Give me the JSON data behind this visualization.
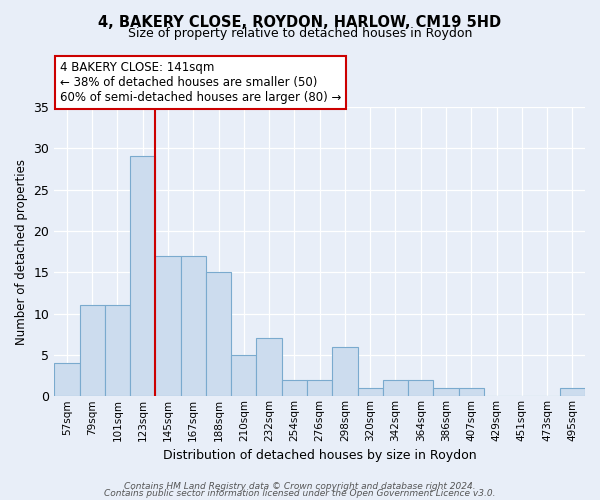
{
  "title": "4, BAKERY CLOSE, ROYDON, HARLOW, CM19 5HD",
  "subtitle": "Size of property relative to detached houses in Roydon",
  "xlabel": "Distribution of detached houses by size in Roydon",
  "ylabel": "Number of detached properties",
  "footer_line1": "Contains HM Land Registry data © Crown copyright and database right 2024.",
  "footer_line2": "Contains public sector information licensed under the Open Government Licence v3.0.",
  "bin_labels": [
    "57sqm",
    "79sqm",
    "101sqm",
    "123sqm",
    "145sqm",
    "167sqm",
    "188sqm",
    "210sqm",
    "232sqm",
    "254sqm",
    "276sqm",
    "298sqm",
    "320sqm",
    "342sqm",
    "364sqm",
    "386sqm",
    "407sqm",
    "429sqm",
    "451sqm",
    "473sqm",
    "495sqm"
  ],
  "bar_values": [
    4,
    11,
    11,
    29,
    17,
    17,
    15,
    5,
    7,
    2,
    2,
    6,
    1,
    2,
    2,
    1,
    1,
    0,
    0,
    0,
    1
  ],
  "bar_color": "#ccdcee",
  "bar_edge_color": "#7aaace",
  "vline_x_index": 3,
  "vline_color": "#cc0000",
  "ylim": [
    0,
    35
  ],
  "yticks": [
    0,
    5,
    10,
    15,
    20,
    25,
    30,
    35
  ],
  "annotation_text": "4 BAKERY CLOSE: 141sqm\n← 38% of detached houses are smaller (50)\n60% of semi-detached houses are larger (80) →",
  "annotation_box_color": "#ffffff",
  "annotation_box_edge": "#cc0000",
  "bg_color": "#e8eef8",
  "plot_bg_color": "#e8eef8"
}
